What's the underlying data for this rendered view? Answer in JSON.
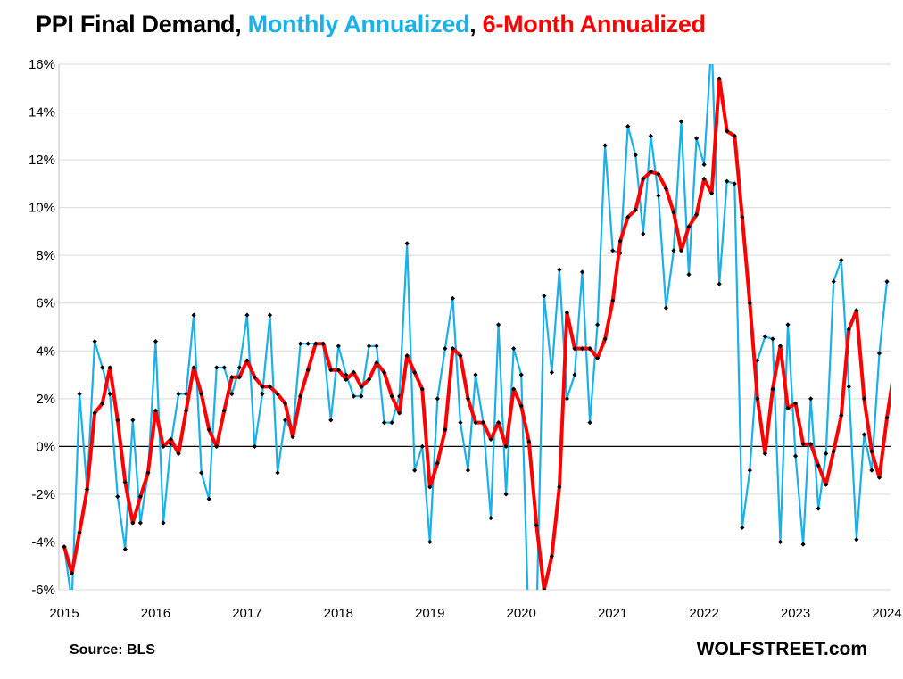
{
  "chart_data": {
    "type": "line",
    "title_parts": [
      {
        "text": "PPI Final Demand,  ",
        "color": "#000000"
      },
      {
        "text": "Monthly Annualized",
        "color": "#1ab0e8"
      },
      {
        "text": ", ",
        "color": "#000000"
      },
      {
        "text": "6-Month Annualized",
        "color": "#ff0000"
      }
    ],
    "source": "Source: BLS",
    "brand": "WOLFSTREET.com",
    "x_ticks": [
      "2015",
      "2016",
      "2017",
      "2018",
      "2019",
      "2020",
      "2021",
      "2022",
      "2023",
      "2024"
    ],
    "y_ticks": [
      "16%",
      "14%",
      "12%",
      "10%",
      "8%",
      "6%",
      "4%",
      "2%",
      "0%",
      "-2%",
      "-4%",
      "-6%"
    ],
    "ylim": [
      -6,
      16
    ],
    "x_range": [
      "2015-01",
      "2024-01"
    ],
    "grid": "horizontal",
    "legend": "none (series named in title)",
    "series": [
      {
        "name": "Monthly Annualized",
        "color": "#1ab0e8",
        "start": "2015-01",
        "values": [
          -4.2,
          -6.5,
          2.2,
          -1.8,
          4.4,
          3.3,
          2.2,
          -2.1,
          -4.3,
          1.1,
          -3.2,
          -1.1,
          4.4,
          -3.2,
          0.1,
          2.2,
          2.2,
          5.5,
          -1.1,
          -2.2,
          3.3,
          3.3,
          2.2,
          3.3,
          5.5,
          0.0,
          2.2,
          5.5,
          -1.1,
          1.1,
          0.6,
          4.3,
          4.3,
          4.3,
          4.3,
          1.1,
          4.2,
          3.0,
          2.1,
          2.1,
          4.2,
          4.2,
          1.0,
          1.0,
          2.1,
          8.5,
          -1.0,
          0.0,
          -4.0,
          2.0,
          4.1,
          6.2,
          1.0,
          -1.0,
          3.0,
          1.0,
          -3.0,
          5.1,
          -2.0,
          4.1,
          3.0,
          -8.0,
          -7.2,
          6.3,
          3.1,
          7.4,
          2.0,
          3.0,
          7.3,
          1.0,
          5.1,
          12.6,
          8.2,
          8.1,
          13.4,
          12.2,
          8.9,
          13.0,
          10.5,
          5.8,
          8.2,
          13.6,
          7.2,
          12.9,
          11.8,
          17.0,
          6.8,
          11.1,
          11.0,
          -3.4,
          -1.0,
          3.6,
          4.6,
          4.5,
          -4.0,
          5.1,
          -0.4,
          -4.1,
          2.0,
          -2.6,
          -0.3,
          6.9,
          7.8,
          2.5,
          -3.9,
          0.5,
          -1.0,
          3.9,
          6.9
        ]
      },
      {
        "name": "6-Month Annualized",
        "color": "#ff0000",
        "start": "2015-01",
        "values": [
          -4.2,
          -5.3,
          -3.6,
          -1.8,
          1.4,
          1.8,
          3.3,
          1.1,
          -1.5,
          -3.2,
          -2.1,
          -1.1,
          1.5,
          0.0,
          0.3,
          -0.3,
          1.5,
          3.3,
          2.2,
          0.7,
          0.0,
          1.5,
          2.9,
          2.9,
          3.6,
          2.9,
          2.5,
          2.5,
          2.2,
          1.8,
          0.4,
          2.1,
          3.2,
          4.3,
          4.3,
          3.2,
          3.2,
          2.8,
          3.1,
          2.5,
          2.8,
          3.5,
          3.1,
          2.1,
          1.4,
          3.8,
          3.1,
          2.4,
          -1.7,
          -0.7,
          0.7,
          4.1,
          3.8,
          2.0,
          1.0,
          1.0,
          0.3,
          1.0,
          0.0,
          2.4,
          1.7,
          0.2,
          -3.3,
          -6.0,
          -4.6,
          -1.7,
          5.6,
          4.1,
          4.1,
          4.1,
          3.7,
          4.5,
          6.1,
          8.6,
          9.6,
          9.9,
          11.2,
          11.5,
          11.4,
          10.8,
          9.8,
          8.2,
          9.2,
          9.7,
          11.2,
          10.6,
          15.4,
          13.2,
          13.0,
          9.6,
          6.0,
          2.0,
          -0.3,
          2.4,
          4.2,
          1.6,
          1.8,
          0.1,
          0.1,
          -0.8,
          -1.6,
          -0.2,
          1.3,
          4.9,
          5.7,
          2.0,
          -0.2,
          -1.3,
          1.2,
          3.3
        ]
      }
    ]
  }
}
